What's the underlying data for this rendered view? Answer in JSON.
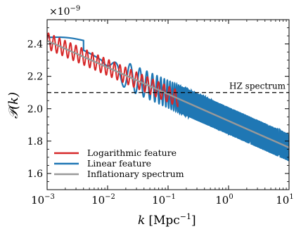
{
  "chart_data": {
    "type": "line",
    "x_scale": "log",
    "x_range": [
      0.001,
      10
    ],
    "y_range": [
      1.5,
      2.55
    ],
    "y_multiplier_label": "×10",
    "y_multiplier_exp": "−9",
    "xlabel_main": "k",
    "xlabel_unit": "[Mpc",
    "xlabel_exp": "−1",
    "xlabel_close": "]",
    "ylabel_main": "𝒫(k)",
    "x_tick_labels": [
      {
        "value": 0.001,
        "base": "10",
        "exp": "−3"
      },
      {
        "value": 0.01,
        "base": "10",
        "exp": "−2"
      },
      {
        "value": 0.1,
        "base": "10",
        "exp": "−1"
      },
      {
        "value": 1,
        "base": "10",
        "exp": "0"
      },
      {
        "value": 10,
        "base": "10",
        "exp": "1"
      }
    ],
    "y_ticks": [
      1.6,
      1.8,
      2.0,
      2.2,
      2.4
    ],
    "y_tick_labels": [
      "1.6",
      "1.8",
      "2.0",
      "2.2",
      "2.4"
    ],
    "grid": false,
    "legend_position": "lower-left",
    "series": [
      {
        "name": "Logarithmic feature",
        "color": "#d62728",
        "model": "inflationary baseline × (1 + A sin(ω ln k)), oscillations spanning the whole range",
        "baseline": {
          "k": [
            0.001,
            10
          ],
          "P": [
            2.42,
            1.76
          ]
        },
        "amplitude": 0.05,
        "cycles_per_decade": 11
      },
      {
        "name": "Linear feature",
        "color": "#1f77b4",
        "model": "inflationary baseline × (1 + A sin(ω k)), damped step at low k then dense oscillation",
        "baseline": {
          "k": [
            0.001,
            10
          ],
          "P": [
            2.42,
            1.76
          ]
        },
        "low_k_plateau": {
          "k": [
            0.001,
            0.004
          ],
          "P": 2.44
        },
        "amplitude_high_k": 0.035
      },
      {
        "name": "Inflationary spectrum",
        "color": "#999999",
        "model": "power law",
        "k": [
          0.001,
          10
        ],
        "P": [
          2.42,
          1.76
        ]
      }
    ],
    "reference_line": {
      "name": "HZ spectrum",
      "value": 2.1,
      "style": "dashed",
      "color": "#000000"
    }
  }
}
